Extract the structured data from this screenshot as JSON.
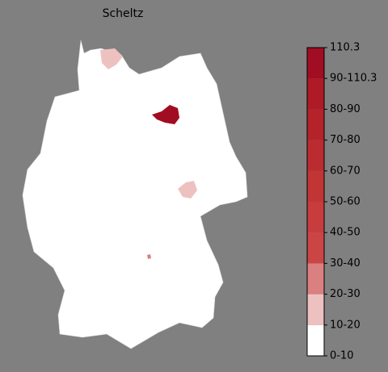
{
  "title": "Scheltz",
  "colorbar": {
    "labels": [
      "0-10",
      "10-20",
      "20-30",
      "30-40",
      "40-50",
      "50-60",
      "60-70",
      "70-80",
      "80-90",
      "90-110.3",
      "110.3"
    ],
    "colors": [
      "#ffffff",
      "#eec1c1",
      "#da8080",
      "#cc4545",
      "#c73d3d",
      "#c13535",
      "#bb2c30",
      "#b5232a",
      "#ae1a25",
      "#a10d22"
    ]
  }
}
